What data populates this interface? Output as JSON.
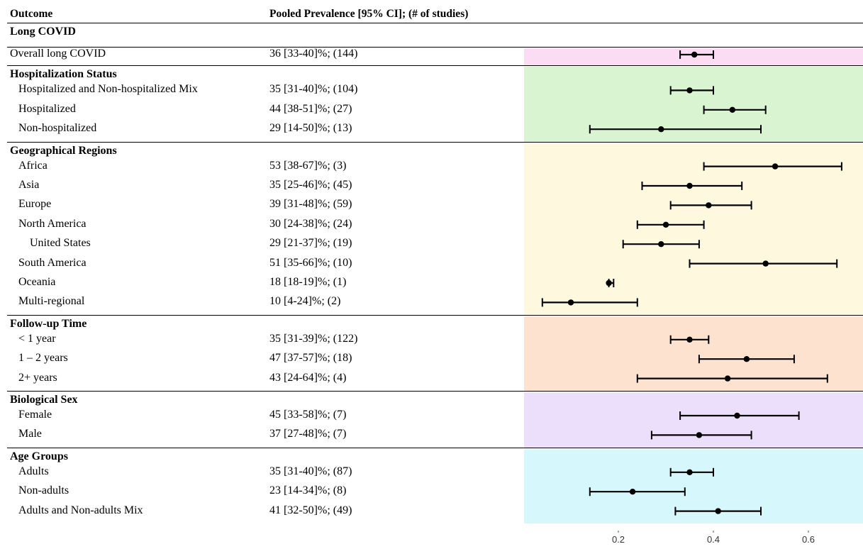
{
  "header": {
    "outcome": "Outcome",
    "prevalence": "Pooled Prevalence [95% CI]; (# of studies)"
  },
  "chart_data": {
    "type": "forest",
    "xticks": [
      0.2,
      0.4,
      0.6
    ],
    "xlim": [
      0.06,
      0.69
    ],
    "sections": [
      {
        "title": "Long COVID",
        "color": "",
        "rows": [
          {
            "label": "Overall long COVID",
            "text": "36 [33-40]%; (144)",
            "est": 0.36,
            "lo": 0.33,
            "hi": 0.4,
            "indent": 0
          }
        ]
      },
      {
        "title": "Hospitalization Status",
        "color": "#d8f4d0",
        "rows": [
          {
            "label": "Hospitalized and Non-hospitalized Mix",
            "text": "35 [31-40]%; (104)",
            "est": 0.35,
            "lo": 0.31,
            "hi": 0.4,
            "indent": 1
          },
          {
            "label": "Hospitalized",
            "text": "44 [38-51]%; (27)",
            "est": 0.44,
            "lo": 0.38,
            "hi": 0.51,
            "indent": 1
          },
          {
            "label": "Non-hospitalized",
            "text": "29 [14-50]%; (13)",
            "est": 0.29,
            "lo": 0.14,
            "hi": 0.5,
            "indent": 1
          }
        ]
      },
      {
        "title": "Geographical Regions",
        "color": "#fdf8de",
        "rows": [
          {
            "label": "Africa",
            "text": "53 [38-67]%; (3)",
            "est": 0.53,
            "lo": 0.38,
            "hi": 0.67,
            "indent": 1
          },
          {
            "label": "Asia",
            "text": "35 [25-46]%; (45)",
            "est": 0.35,
            "lo": 0.25,
            "hi": 0.46,
            "indent": 1
          },
          {
            "label": "Europe",
            "text": "39 [31-48]%; (59)",
            "est": 0.39,
            "lo": 0.31,
            "hi": 0.48,
            "indent": 1
          },
          {
            "label": "North America",
            "text": "30 [24-38]%; (24)",
            "est": 0.3,
            "lo": 0.24,
            "hi": 0.38,
            "indent": 1
          },
          {
            "label": "United States",
            "text": "29 [21-37]%; (19)",
            "est": 0.29,
            "lo": 0.21,
            "hi": 0.37,
            "indent": 2
          },
          {
            "label": "South America",
            "text": "51 [35-66]%; (10)",
            "est": 0.51,
            "lo": 0.35,
            "hi": 0.66,
            "indent": 1
          },
          {
            "label": "Oceania",
            "text": "18 [18-19]%; (1)",
            "est": 0.18,
            "lo": 0.18,
            "hi": 0.19,
            "indent": 1
          },
          {
            "label": "Multi-regional",
            "text": "10 [4-24]%; (2)",
            "est": 0.1,
            "lo": 0.04,
            "hi": 0.24,
            "indent": 1
          }
        ]
      },
      {
        "title": "Follow-up Time",
        "color": "#fce2cf",
        "rows": [
          {
            "label": "< 1 year",
            "text": "35 [31-39]%; (122)",
            "est": 0.35,
            "lo": 0.31,
            "hi": 0.39,
            "indent": 1
          },
          {
            "label": "1 – 2 years",
            "text": "47 [37-57]%; (18)",
            "est": 0.47,
            "lo": 0.37,
            "hi": 0.57,
            "indent": 1
          },
          {
            "label": "2+ years",
            "text": "43 [24-64]%; (4)",
            "est": 0.43,
            "lo": 0.24,
            "hi": 0.64,
            "indent": 1
          }
        ]
      },
      {
        "title": "Biological Sex",
        "color": "#ecdffc",
        "rows": [
          {
            "label": "Female",
            "text": "45 [33-58]%; (7)",
            "est": 0.45,
            "lo": 0.33,
            "hi": 0.58,
            "indent": 1
          },
          {
            "label": "Male",
            "text": "37 [27-48]%; (7)",
            "est": 0.37,
            "lo": 0.27,
            "hi": 0.48,
            "indent": 1
          }
        ]
      },
      {
        "title": "Age Groups",
        "color": "#d6f7fb",
        "rows": [
          {
            "label": "Adults",
            "text": "35 [31-40]%; (87)",
            "est": 0.35,
            "lo": 0.31,
            "hi": 0.4,
            "indent": 1
          },
          {
            "label": "Non-adults",
            "text": "23 [14-34]%; (8)",
            "est": 0.23,
            "lo": 0.14,
            "hi": 0.34,
            "indent": 1
          },
          {
            "label": "Adults and Non-adults Mix",
            "text": "41 [32-50]%; (49)",
            "est": 0.41,
            "lo": 0.32,
            "hi": 0.5,
            "indent": 1
          }
        ]
      }
    ],
    "overall_band_color": "#fbdcf2"
  }
}
